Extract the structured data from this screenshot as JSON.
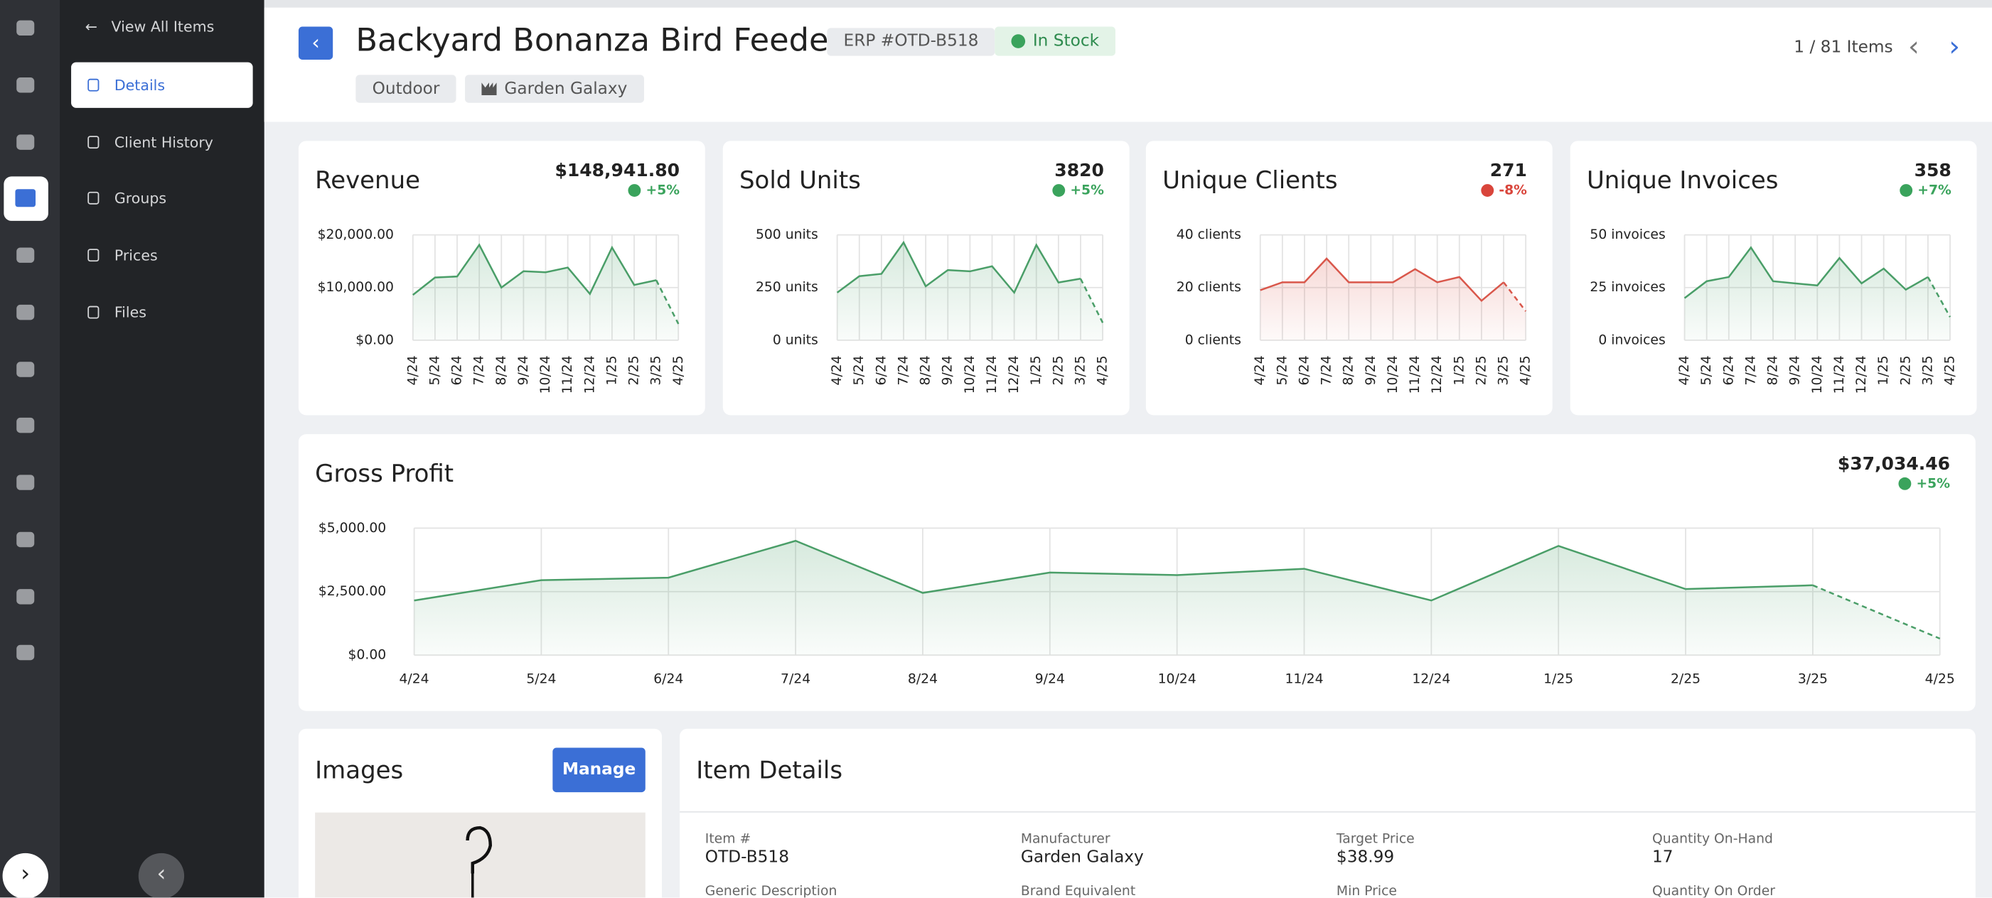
{
  "nav": {
    "back": "View All Items",
    "items": [
      "Details",
      "Client History",
      "Groups",
      "Prices",
      "Files"
    ]
  },
  "header": {
    "title": "Backyard Bonanza Bird Feeder",
    "erp": "ERP #OTD-B518",
    "status": "In Stock",
    "tags": [
      "Outdoor",
      "Garden Galaxy"
    ],
    "pager": "1 / 81 Items"
  },
  "chart_data": [
    {
      "type": "line",
      "title": "Revenue",
      "total": "$148,941.80",
      "change": "+5%",
      "change_color": "#3aa35c",
      "color": "#4a9e68",
      "projected_last": true,
      "grid": true,
      "categories": [
        "4/24",
        "5/24",
        "6/24",
        "7/24",
        "8/24",
        "9/24",
        "10/24",
        "11/24",
        "12/24",
        "1/25",
        "2/25",
        "3/25",
        "4/25"
      ],
      "values": [
        8600,
        11900,
        12100,
        18100,
        10000,
        13100,
        12900,
        13800,
        8800,
        17600,
        10500,
        11400,
        3100
      ],
      "ylim": [
        0,
        20000
      ],
      "yticks": [
        {
          "value": 0,
          "label": "$0.00"
        },
        {
          "value": 10000,
          "label": "$10,000.00"
        },
        {
          "value": 20000,
          "label": "$20,000.00"
        }
      ]
    },
    {
      "type": "line",
      "title": "Sold Units",
      "total": "3820",
      "change": "+5%",
      "change_color": "#3aa35c",
      "color": "#4a9e68",
      "projected_last": true,
      "grid": true,
      "categories": [
        "4/24",
        "5/24",
        "6/24",
        "7/24",
        "8/24",
        "9/24",
        "10/24",
        "11/24",
        "12/24",
        "1/25",
        "2/25",
        "3/25",
        "4/25"
      ],
      "values": [
        226,
        304,
        315,
        464,
        256,
        333,
        327,
        351,
        226,
        452,
        274,
        292,
        83
      ],
      "ylim": [
        0,
        500
      ],
      "yticks": [
        {
          "value": 0,
          "label": "0 units"
        },
        {
          "value": 250,
          "label": "250 units"
        },
        {
          "value": 500,
          "label": "500 units"
        }
      ]
    },
    {
      "type": "line",
      "title": "Unique Clients",
      "total": "271",
      "change": "-8%",
      "change_color": "#d9453b",
      "color": "#d9574b",
      "projected_last": true,
      "grid": true,
      "categories": [
        "4/24",
        "5/24",
        "6/24",
        "7/24",
        "8/24",
        "9/24",
        "10/24",
        "11/24",
        "12/24",
        "1/25",
        "2/25",
        "3/25",
        "4/25"
      ],
      "values": [
        19,
        22,
        22,
        31,
        22,
        22,
        22,
        27,
        22,
        24,
        15,
        22,
        11
      ],
      "ylim": [
        0,
        40
      ],
      "yticks": [
        {
          "value": 0,
          "label": "0 clients"
        },
        {
          "value": 20,
          "label": "20 clients"
        },
        {
          "value": 40,
          "label": "40 clients"
        }
      ]
    },
    {
      "type": "line",
      "title": "Unique Invoices",
      "total": "358",
      "change": "+7%",
      "change_color": "#3aa35c",
      "color": "#4a9e68",
      "projected_last": true,
      "grid": true,
      "categories": [
        "4/24",
        "5/24",
        "6/24",
        "7/24",
        "8/24",
        "9/24",
        "10/24",
        "11/24",
        "12/24",
        "1/25",
        "2/25",
        "3/25",
        "4/25"
      ],
      "values": [
        20,
        28,
        30,
        44,
        28,
        27,
        26,
        39,
        27,
        34,
        24,
        30,
        11
      ],
      "ylim": [
        0,
        50
      ],
      "yticks": [
        {
          "value": 0,
          "label": "0 invoices"
        },
        {
          "value": 25,
          "label": "25 invoices"
        },
        {
          "value": 50,
          "label": "50 invoices"
        }
      ]
    },
    {
      "type": "line",
      "title": "Gross Profit",
      "total": "$37,034.46",
      "change": "+5%",
      "change_color": "#3aa35c",
      "color": "#4a9e68",
      "projected_last": true,
      "grid": true,
      "categories": [
        "4/24",
        "5/24",
        "6/24",
        "7/24",
        "8/24",
        "9/24",
        "10/24",
        "11/24",
        "12/24",
        "1/25",
        "2/25",
        "3/25",
        "4/25"
      ],
      "values": [
        2150,
        2950,
        3050,
        4500,
        2450,
        3250,
        3150,
        3400,
        2150,
        4300,
        2600,
        2750,
        650
      ],
      "ylim": [
        0,
        5000
      ],
      "yticks": [
        {
          "value": 0,
          "label": "$0.00"
        },
        {
          "value": 2500,
          "label": "$2,500.00"
        },
        {
          "value": 5000,
          "label": "$5,000.00"
        }
      ]
    }
  ],
  "images": {
    "title": "Images",
    "button": "Manage"
  },
  "item_details": {
    "title": "Item Details",
    "fields": [
      {
        "label": "Item #",
        "value": "OTD-B518"
      },
      {
        "label": "Manufacturer",
        "value": "Garden Galaxy"
      },
      {
        "label": "Target Price",
        "value": "$38.99"
      },
      {
        "label": "Quantity On-Hand",
        "value": "17"
      },
      {
        "label": "Generic Description"
      },
      {
        "label": "Brand Equivalent"
      },
      {
        "label": "Min Price"
      },
      {
        "label": "Quantity On Order"
      }
    ]
  }
}
